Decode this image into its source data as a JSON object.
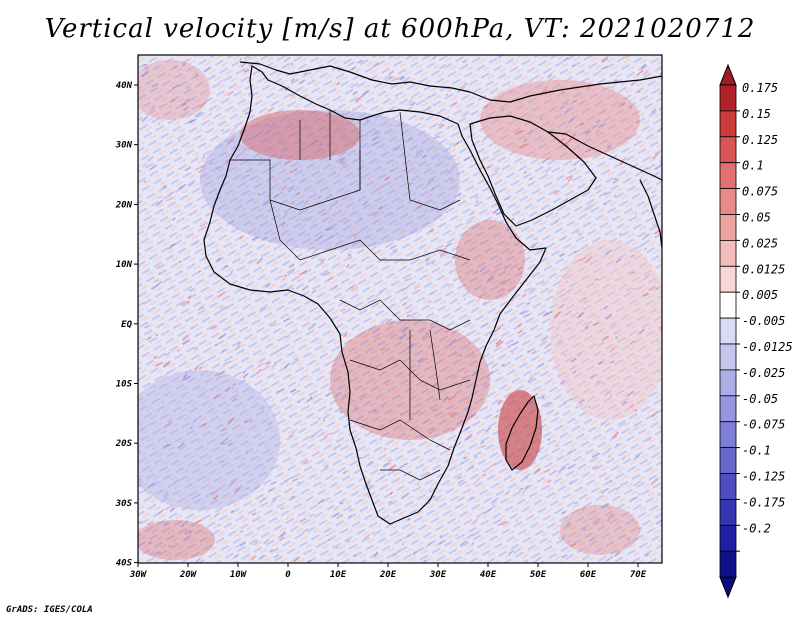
{
  "title": "Vertical velocity [m/s] at 600hPa, VT: 2021020712",
  "credit": "GrADS: IGES/COLA",
  "axes": {
    "lon_ticks": [
      "30W",
      "20W",
      "10W",
      "0",
      "10E",
      "20E",
      "30E",
      "40E",
      "50E",
      "60E",
      "70E"
    ],
    "lat_ticks": [
      "40N",
      "30N",
      "20N",
      "10N",
      "EQ",
      "10S",
      "20S",
      "30S",
      "40S"
    ]
  },
  "colorbar": {
    "labels": [
      "0.175",
      "0.15",
      "0.125",
      "0.1",
      "0.075",
      "0.05",
      "0.025",
      "0.0125",
      "0.005",
      "-0.005",
      "-0.0125",
      "-0.025",
      "-0.05",
      "-0.075",
      "-0.1",
      "-0.125",
      "-0.175",
      "-0.2"
    ],
    "colors": [
      "#b2202a",
      "#cc3a3a",
      "#d95555",
      "#e27070",
      "#e88a8a",
      "#eea3a3",
      "#f4bdbd",
      "#f9d6d6",
      "#ffffff",
      "#dadaf4",
      "#c6c6ee",
      "#aeaee6",
      "#9696de",
      "#7e7ed6",
      "#6666cc",
      "#4e4ec2",
      "#3636b4",
      "#2020a6",
      "#10108c"
    ],
    "top_arrow_color": "#a01c22",
    "bottom_arrow_color": "#0c0c80"
  },
  "palette": {
    "ocean_base": "#e4e4f6",
    "warm": "#e07070",
    "cool": "#8a8ad8"
  }
}
